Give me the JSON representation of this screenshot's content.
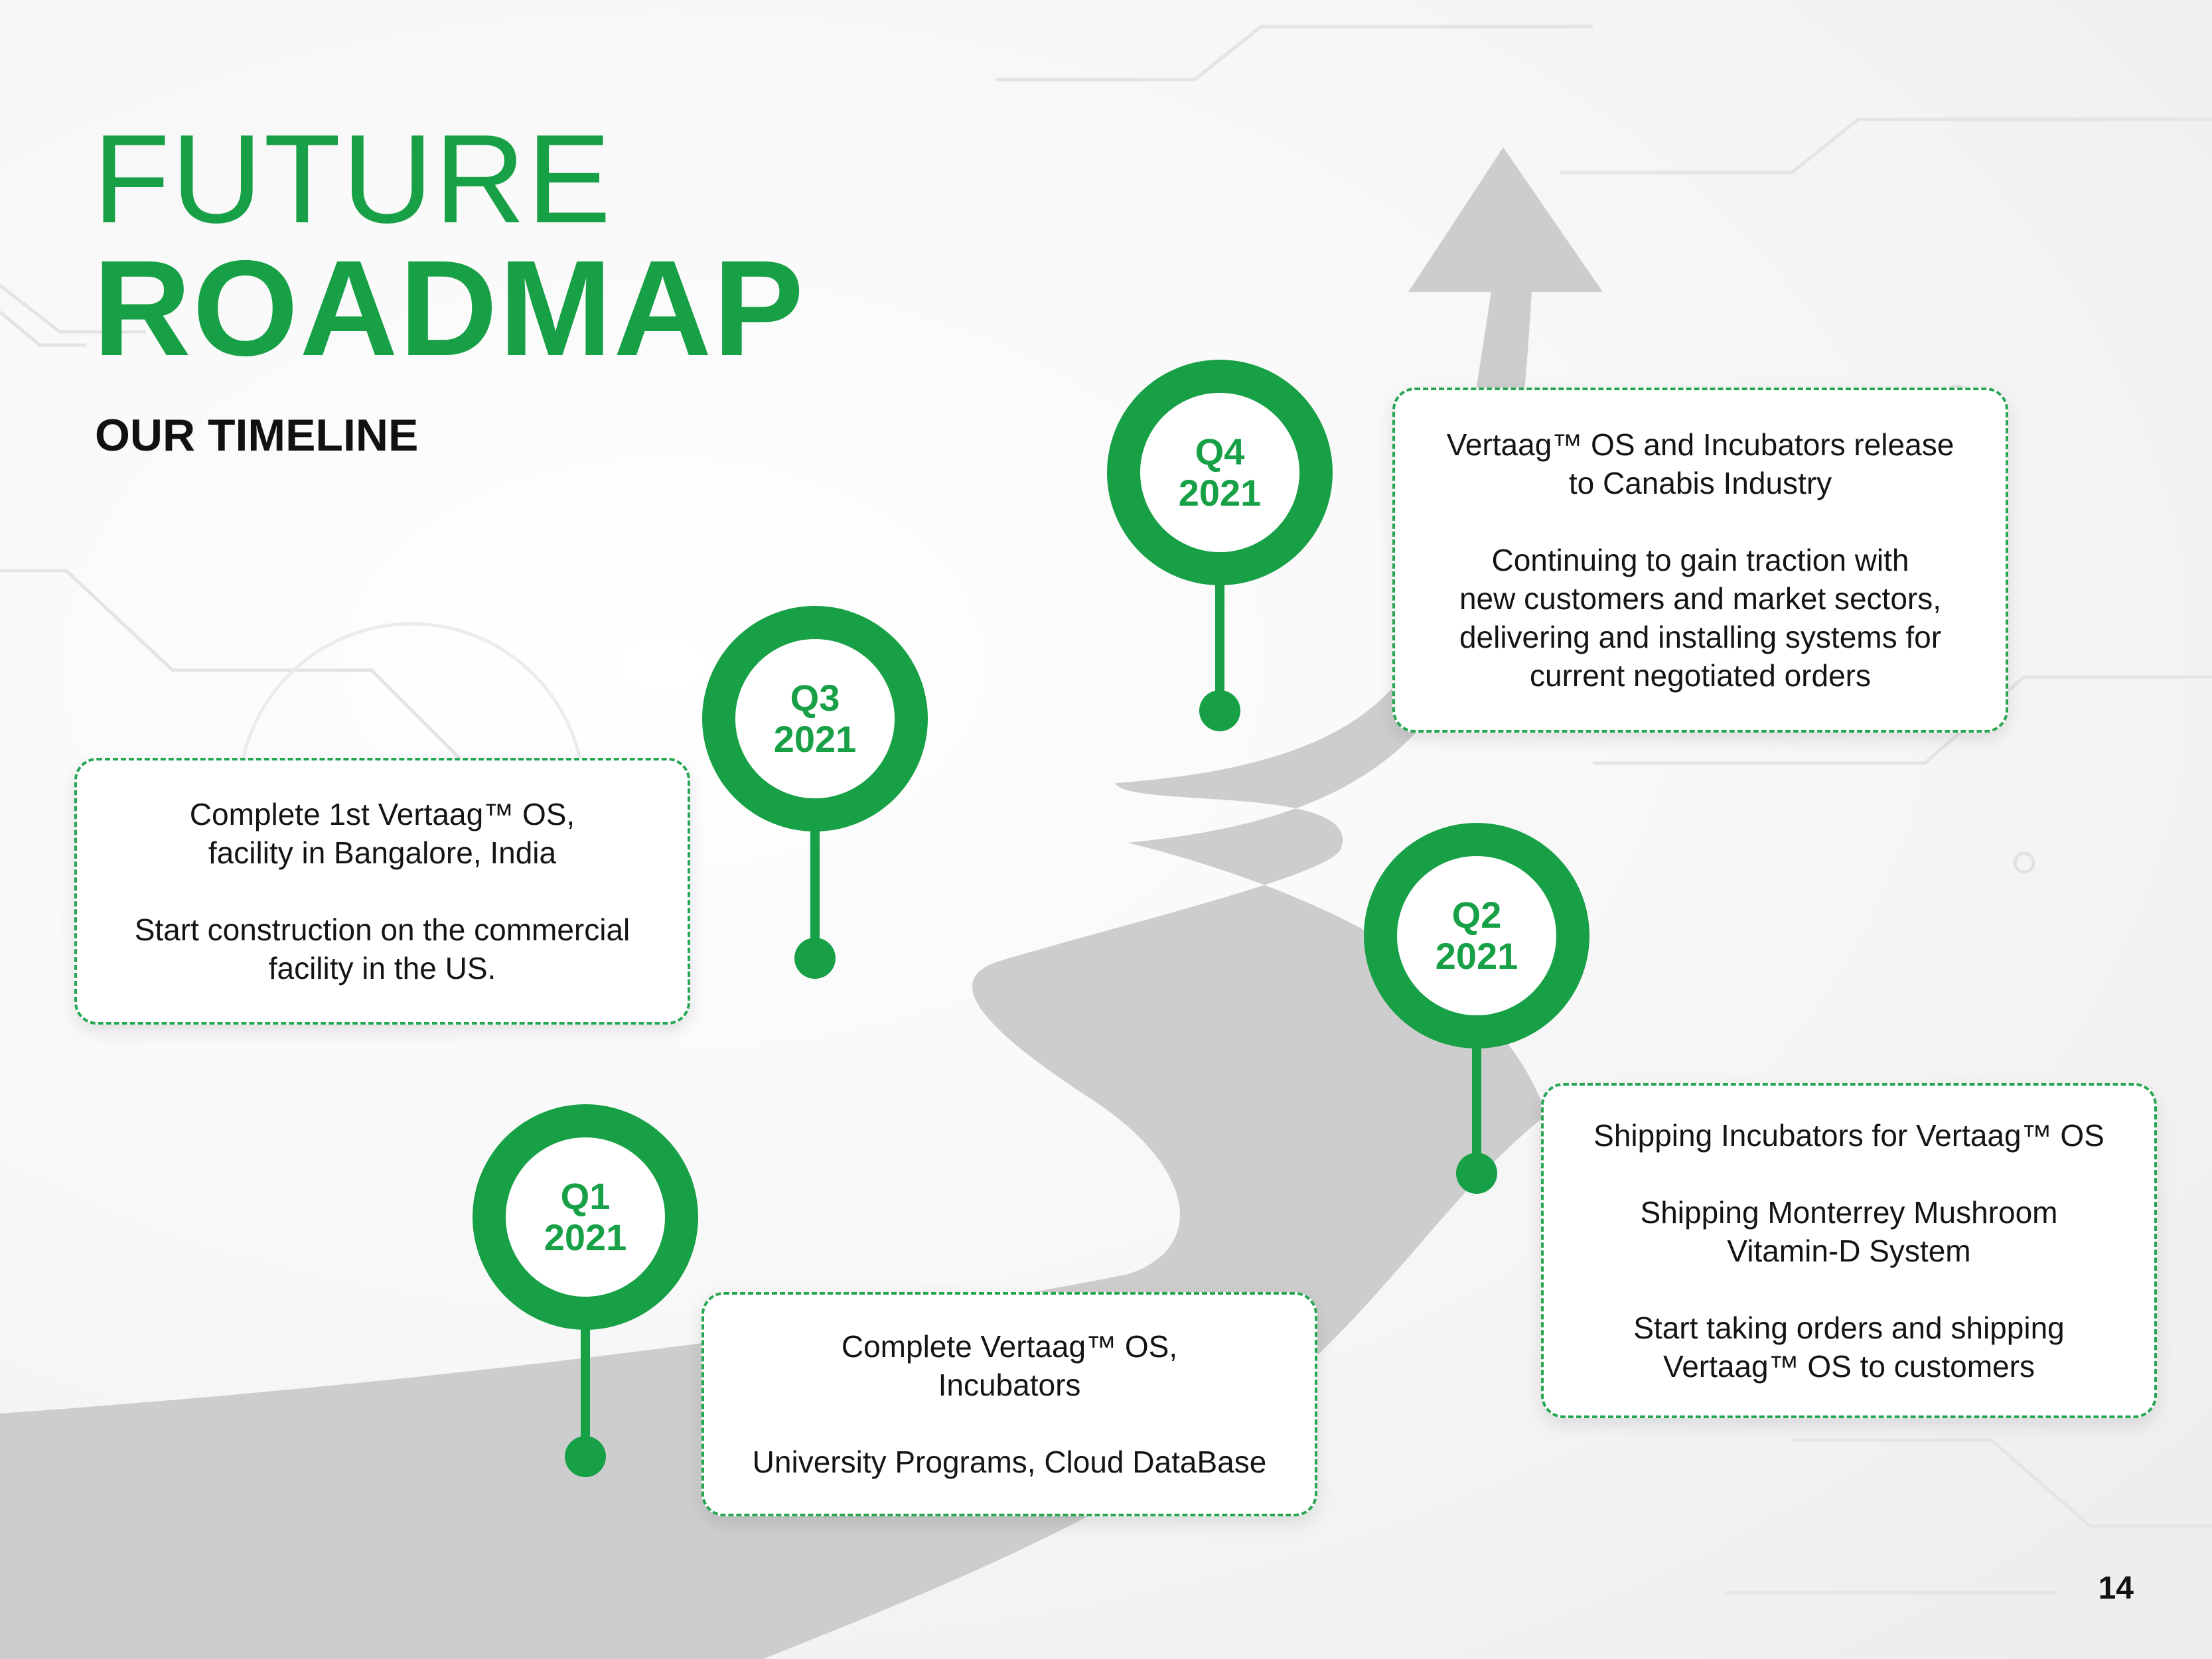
{
  "title": {
    "line1": "FUTURE",
    "line2": "ROADMAP",
    "subtitle": "OUR TIMELINE"
  },
  "milestones": [
    {
      "quarter": "Q1",
      "year": "2021",
      "items": [
        [
          "Complete Vertaag™ OS,",
          "Incubators"
        ],
        [
          "University Programs, Cloud DataBase"
        ]
      ]
    },
    {
      "quarter": "Q2",
      "year": "2021",
      "items": [
        [
          "Shipping Incubators for Vertaag™ OS"
        ],
        [
          "Shipping Monterrey Mushroom",
          "Vitamin-D System"
        ],
        [
          "Start taking orders and shipping",
          "Vertaag™ OS to customers"
        ]
      ]
    },
    {
      "quarter": "Q3",
      "year": "2021",
      "items": [
        [
          "Complete 1st Vertaag™ OS,",
          "facility in Bangalore, India"
        ],
        [
          "Start construction on the commercial",
          "facility in the US."
        ]
      ]
    },
    {
      "quarter": "Q4",
      "year": "2021",
      "items": [
        [
          "Vertaag™ OS and Incubators release",
          "to Canabis Industry"
        ],
        [
          "Continuing to gain traction with",
          "new customers and market sectors,",
          "delivering and installing systems for",
          "current negotiated orders"
        ]
      ]
    }
  ],
  "page_number": "14",
  "colors": {
    "accent": "#17a046",
    "road": "#cccccc",
    "card_border": "#26a653"
  }
}
